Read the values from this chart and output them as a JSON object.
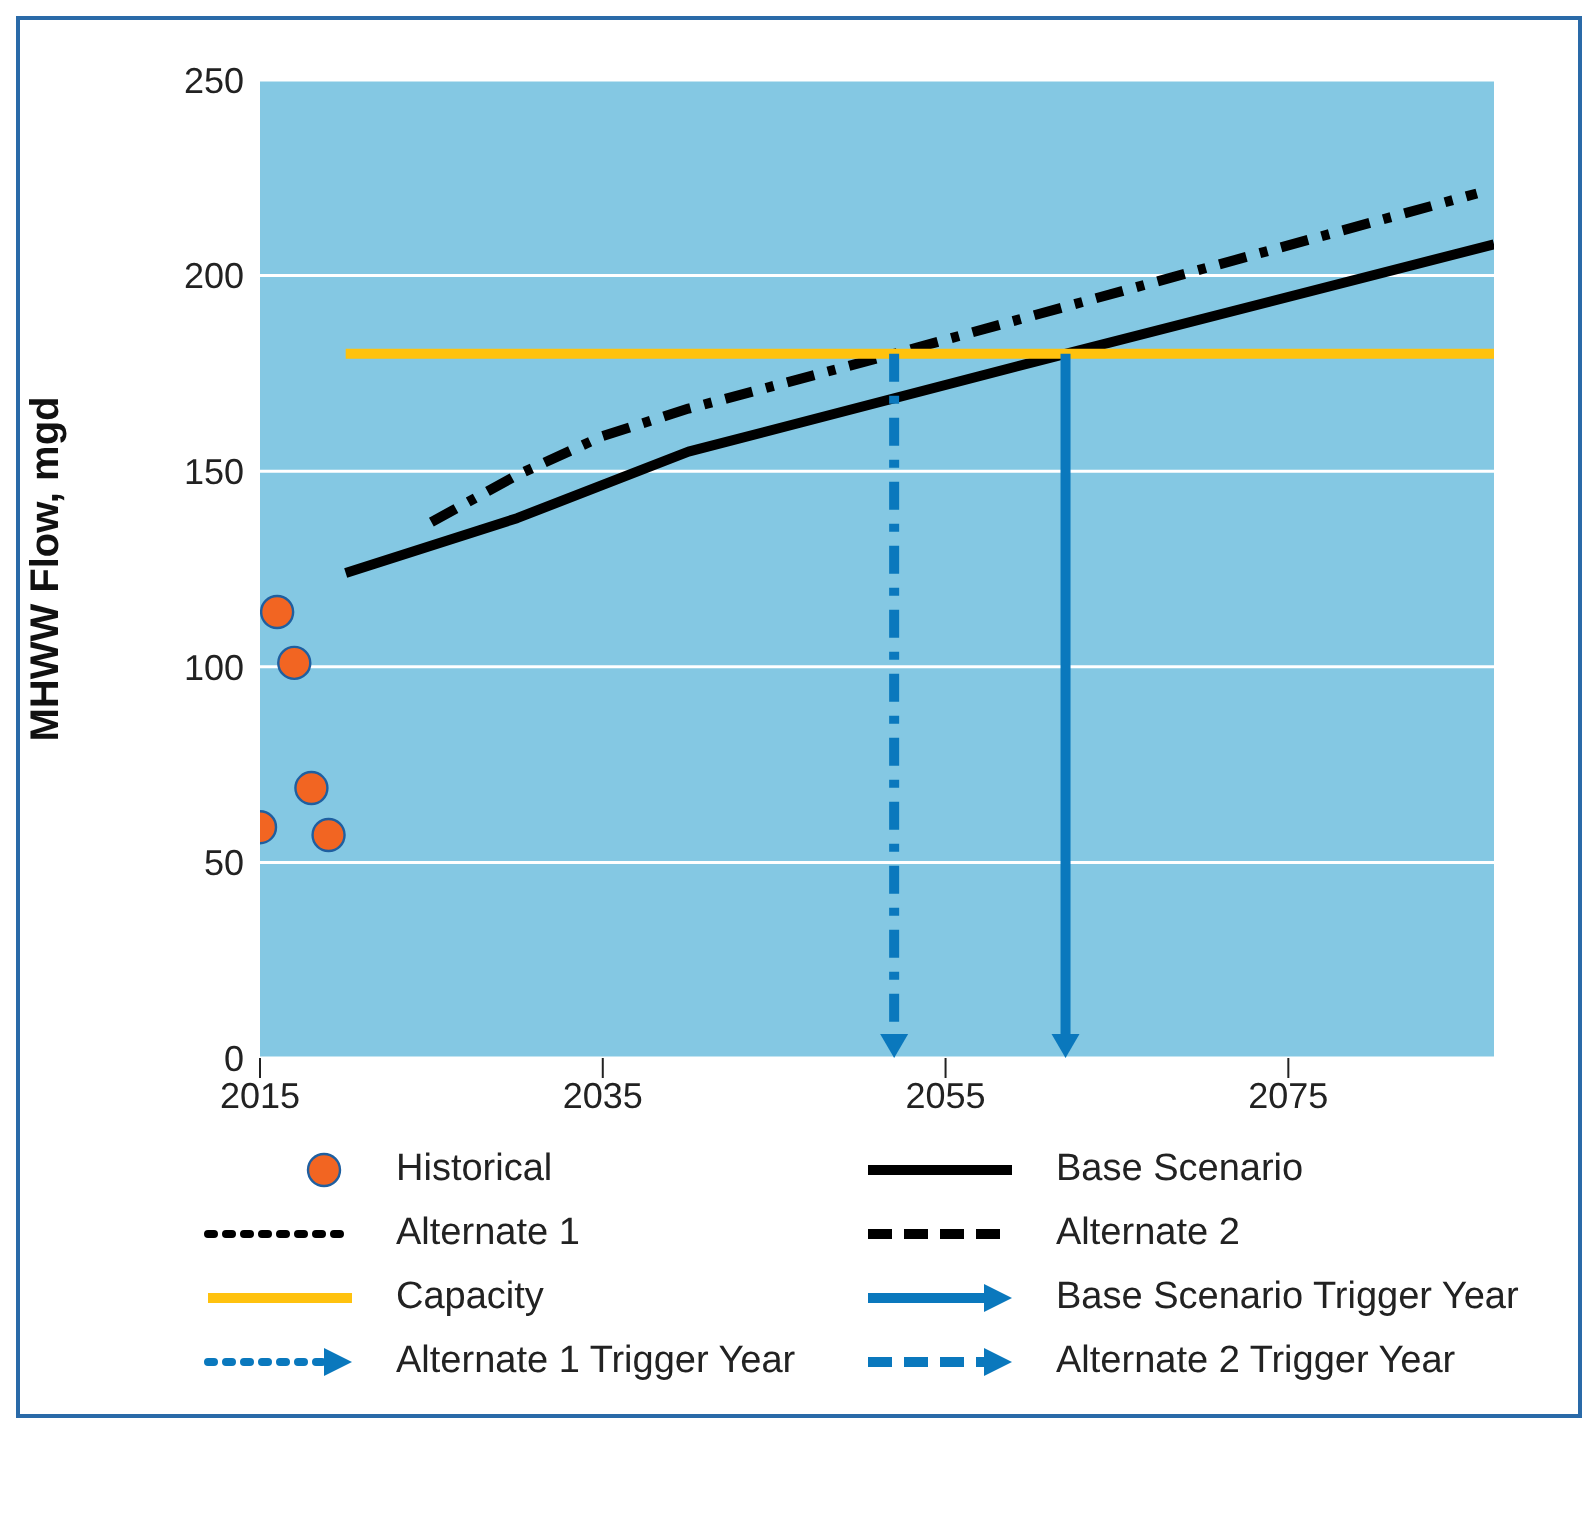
{
  "chart_data": {
    "type": "line",
    "ylabel": "MHWW Flow, mgd",
    "xlim": [
      2015,
      2087
    ],
    "xticks": [
      2015,
      2035,
      2055,
      2075
    ],
    "ylim": [
      0,
      250
    ],
    "yticks": [
      0,
      50,
      100,
      150,
      200,
      250
    ],
    "grid": "y",
    "legend": "bottom",
    "series": [
      {
        "name": "Historical",
        "type": "scatter",
        "marker": "circle",
        "color": "#f26522",
        "x": [
          2015,
          2016,
          2017,
          2018,
          2019
        ],
        "values": [
          59,
          114,
          101,
          69,
          57
        ]
      },
      {
        "name": "Base Scenario",
        "line_style": "solid",
        "color": "#000000",
        "x": [
          2020,
          2030,
          2040,
          2062,
          2087
        ],
        "values": [
          124,
          138,
          155,
          180,
          208
        ]
      },
      {
        "name": "Alternate 1",
        "line_style": "dotted",
        "color": "#000000"
      },
      {
        "name": "Alternate 2",
        "line_style": "dashed",
        "color": "#000000",
        "x": [
          2025,
          2030,
          2035,
          2040,
          2052,
          2086
        ],
        "values": [
          137,
          149,
          159,
          166,
          180,
          221
        ]
      },
      {
        "name": "Capacity",
        "line_style": "solid",
        "color": "#ffc20e",
        "x": [
          2020,
          2087
        ],
        "values": [
          180,
          180
        ]
      }
    ],
    "ref_lines": [
      {
        "axis": "x",
        "value": 2062,
        "label": "Base Scenario Trigger Year",
        "color": "#0a78bd",
        "line_style": "solid"
      },
      {
        "value": null,
        "label": "Alternate 1 Trigger Year",
        "color": "#0a78bd",
        "line_style": "dotted"
      },
      {
        "axis": "x",
        "value": 2052,
        "label": "Alternate 2 Trigger Year",
        "color": "#0a78bd",
        "line_style": "dashed"
      }
    ]
  }
}
